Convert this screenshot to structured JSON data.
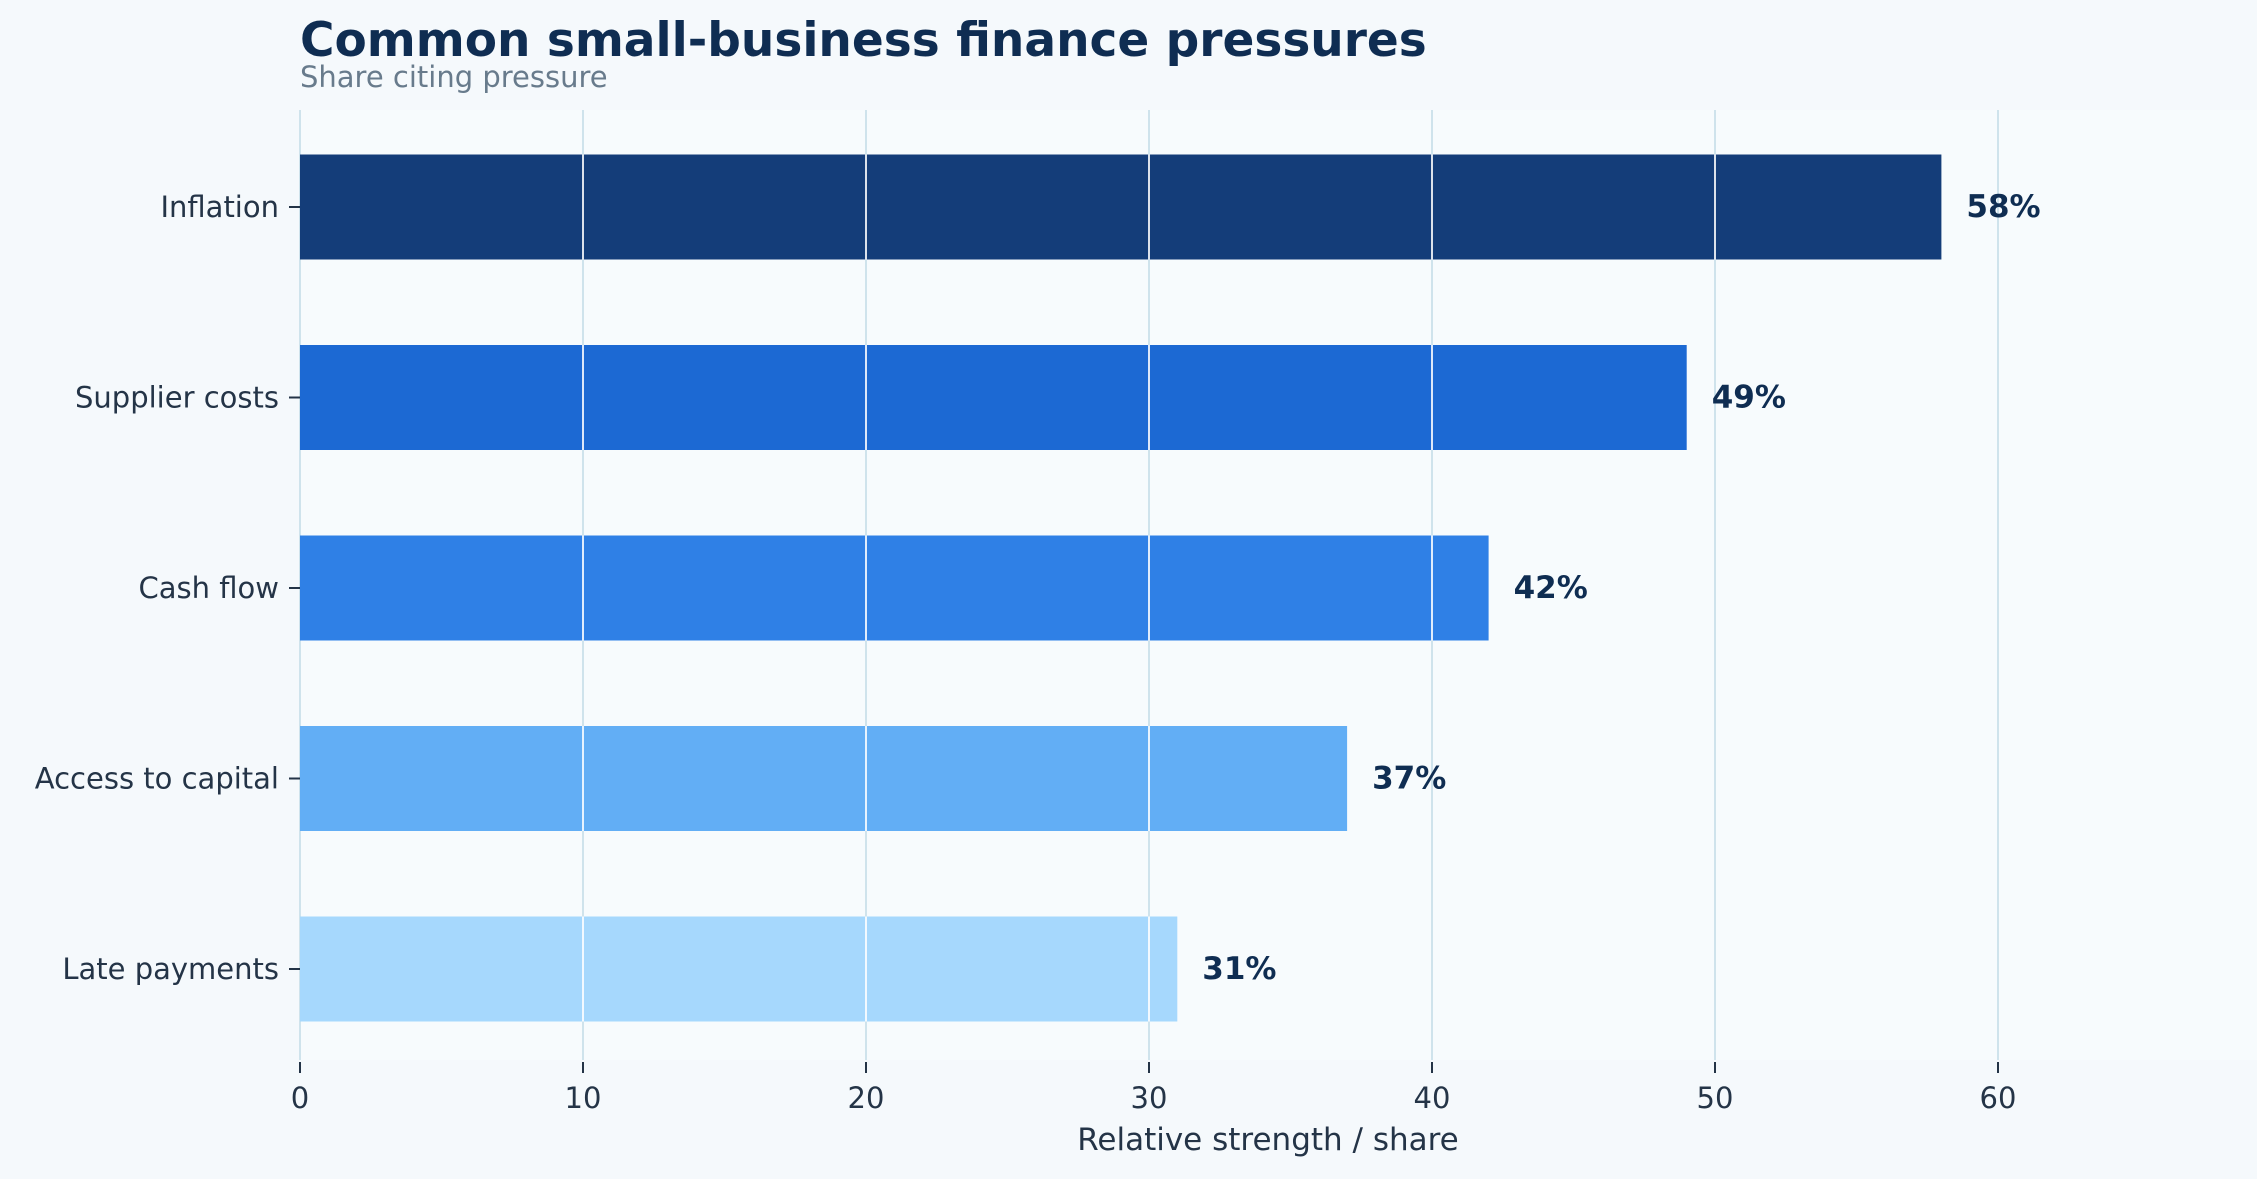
{
  "chart_data": {
    "type": "bar",
    "orientation": "horizontal",
    "title": "Common small-business finance pressures",
    "subtitle": "Share citing pressure",
    "xlabel": "Relative strength / share",
    "ylabel": "",
    "categories": [
      "Inflation",
      "Supplier costs",
      "Cash flow",
      "Access to capital",
      "Late payments"
    ],
    "values": [
      58,
      49,
      42,
      37,
      31
    ],
    "data_labels": [
      "58%",
      "49%",
      "42%",
      "37%",
      "31%"
    ],
    "bar_colors": [
      "#143d79",
      "#1c69d3",
      "#2f80e6",
      "#62aef5",
      "#a6d8fd"
    ],
    "xlim": [
      0,
      69
    ],
    "xticks": [
      0,
      10,
      20,
      30,
      40,
      50,
      60
    ],
    "grid": true,
    "grid_color": "#cfe3ec",
    "background_color": "#f5f9fc",
    "plot_background_color": "#f7fbfd"
  }
}
